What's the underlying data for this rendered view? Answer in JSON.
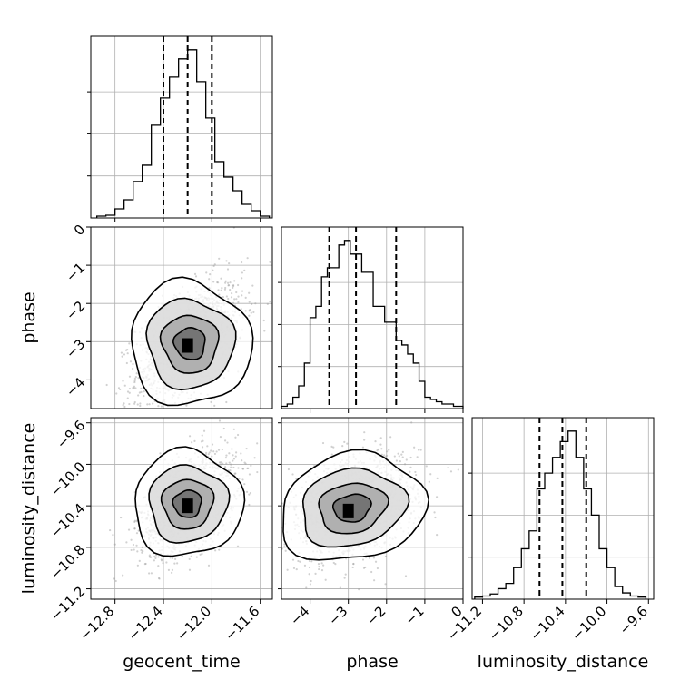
{
  "chart_data": {
    "type": "corner",
    "parameters": [
      "geocent_time",
      "phase",
      "luminosity_distance"
    ],
    "grid": true,
    "ranges": {
      "geocent_time": [
        -13.0,
        -11.5
      ],
      "phase": [
        -4.75,
        0.0
      ],
      "luminosity_distance": [
        -11.3,
        -9.55
      ]
    },
    "ticks": {
      "geocent_time": [
        -12.8,
        -12.4,
        -12.0,
        -11.6
      ],
      "phase": [
        -4,
        -3,
        -2,
        -1,
        0
      ],
      "luminosity_distance": [
        -11.2,
        -10.8,
        -10.4,
        -10.0,
        -9.6
      ]
    },
    "tick_labels": {
      "geocent_time": [
        "−12.8",
        "−12.4",
        "−12.0",
        "−11.6"
      ],
      "phase": [
        "−4",
        "−3",
        "−2",
        "−1",
        "0"
      ],
      "luminosity_distance": [
        "−11.2",
        "−10.8",
        "−10.4",
        "−10.0",
        "−9.6"
      ]
    },
    "quantiles": {
      "geocent_time": [
        -12.4,
        -12.2,
        -12.0
      ],
      "phase": [
        -3.5,
        -2.8,
        -1.75
      ],
      "luminosity_distance": [
        -10.65,
        -10.43,
        -10.2
      ]
    },
    "histograms": {
      "geocent_time": {
        "bin_edges": [
          -12.95,
          -12.875,
          -12.8,
          -12.725,
          -12.65,
          -12.575,
          -12.5,
          -12.425,
          -12.35,
          -12.275,
          -12.2,
          -12.125,
          -12.05,
          -11.975,
          -11.9,
          -11.825,
          -11.75,
          -11.675,
          -11.6,
          -11.525
        ],
        "counts": [
          2,
          3,
          10,
          20,
          40,
          58,
          102,
          132,
          155,
          175,
          185,
          150,
          110,
          62,
          45,
          30,
          15,
          8,
          2
        ]
      },
      "phase": {
        "bin_edges": [
          -4.75,
          -4.6,
          -4.45,
          -4.3,
          -4.15,
          -4.0,
          -3.85,
          -3.7,
          -3.55,
          -3.4,
          -3.25,
          -3.1,
          -2.95,
          -2.8,
          -2.65,
          -2.5,
          -2.35,
          -2.2,
          -2.05,
          -1.9,
          -1.75,
          -1.6,
          -1.45,
          -1.3,
          -1.15,
          -1.0,
          -0.85,
          -0.7,
          -0.55,
          -0.4,
          -0.25,
          -0.1,
          0.0
        ],
        "counts": [
          1,
          2,
          5,
          10,
          20,
          40,
          45,
          58,
          62,
          62,
          72,
          74,
          68,
          68,
          60,
          60,
          45,
          45,
          38,
          38,
          30,
          28,
          24,
          20,
          12,
          5,
          4,
          3,
          2,
          2,
          1,
          1
        ]
      },
      "luminosity_distance": {
        "bin_edges": [
          -11.275,
          -11.2,
          -11.125,
          -11.05,
          -10.975,
          -10.9,
          -10.825,
          -10.75,
          -10.675,
          -10.6,
          -10.525,
          -10.45,
          -10.375,
          -10.3,
          -10.225,
          -10.15,
          -10.075,
          -10.0,
          -9.925,
          -9.85,
          -9.775,
          -9.7,
          -9.625
        ],
        "counts": [
          2,
          3,
          5,
          10,
          15,
          30,
          48,
          65,
          105,
          120,
          135,
          150,
          160,
          135,
          105,
          80,
          48,
          30,
          12,
          6,
          3,
          2
        ]
      }
    },
    "joint": {
      "phase_vs_geocent_time": {
        "mean": [
          -12.18,
          -3.05
        ],
        "std": [
          0.22,
          0.8
        ],
        "correlation": 0.5,
        "peak": [
          -12.2,
          -3.1
        ]
      },
      "luminosity_distance_vs_geocent_time": {
        "mean": [
          -12.2,
          -10.38
        ],
        "std": [
          0.2,
          0.25
        ],
        "correlation": 0.45,
        "peak": [
          -12.2,
          -10.4
        ]
      },
      "luminosity_distance_vs_phase": {
        "mean": [
          -2.9,
          -10.42
        ],
        "std": [
          0.85,
          0.25
        ],
        "correlation": 0.35,
        "peak": [
          -3.0,
          -10.45
        ]
      }
    }
  }
}
